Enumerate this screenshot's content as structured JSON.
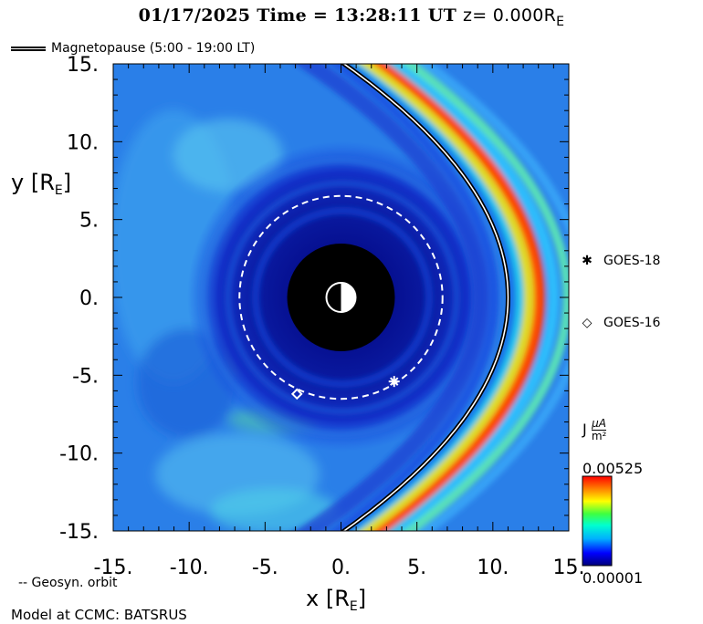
{
  "header": {
    "date": "01/17/2025",
    "time_label": "Time =",
    "time": "13:28:11 UT",
    "z_label": "z= 0.000R",
    "z_sub": "E"
  },
  "legend": {
    "magnetopause": "Magnetopause (5:00 - 19:00 LT)",
    "geosyn": "-- Geosyn. orbit"
  },
  "footer": {
    "model": "Model at CCMC: BATSRUS"
  },
  "satellites": [
    {
      "glyph": "✱",
      "name": "GOES-18"
    },
    {
      "glyph": "◇",
      "name": "GOES-16"
    }
  ],
  "colorbar": {
    "title": "J",
    "unit_num": "μA",
    "unit_den": "m²",
    "max_label": "0.00525",
    "min_label": "0.00001",
    "colors": [
      "#00007a",
      "#0000ff",
      "#00b0ff",
      "#00ffd0",
      "#40ff40",
      "#ffff00",
      "#ff8000",
      "#ff0000"
    ]
  },
  "chart_data": {
    "type": "heatmap",
    "title": "01/17/2025 Time = 13:28:11 UT z= 0.000RE",
    "xlabel": "x [RE]",
    "ylabel": "y [RE]",
    "xlim": [
      -15,
      15
    ],
    "ylim": [
      -15,
      15
    ],
    "x_ticks": [
      "-15.",
      "-10.",
      "-5.",
      "0.",
      "5.",
      "10.",
      "15."
    ],
    "y_ticks": [
      "15.",
      "10.",
      "5.",
      "0.",
      "-5.",
      "-10.",
      "-15."
    ],
    "x_tick_values": [
      -15,
      -10,
      -5,
      0,
      5,
      10,
      15
    ],
    "y_tick_values": [
      15,
      10,
      5,
      0,
      -5,
      -10,
      -15
    ],
    "value_range": [
      1e-05,
      0.00525
    ],
    "geosync_radius": 6.6,
    "earth_radius": 3.5,
    "magnetopause_subsolar_x": 11.0,
    "satellite_positions": [
      {
        "name": "GOES-18",
        "x": 3.5,
        "y": -5.4
      },
      {
        "name": "GOES-16",
        "x": -2.9,
        "y": -6.2
      }
    ]
  }
}
